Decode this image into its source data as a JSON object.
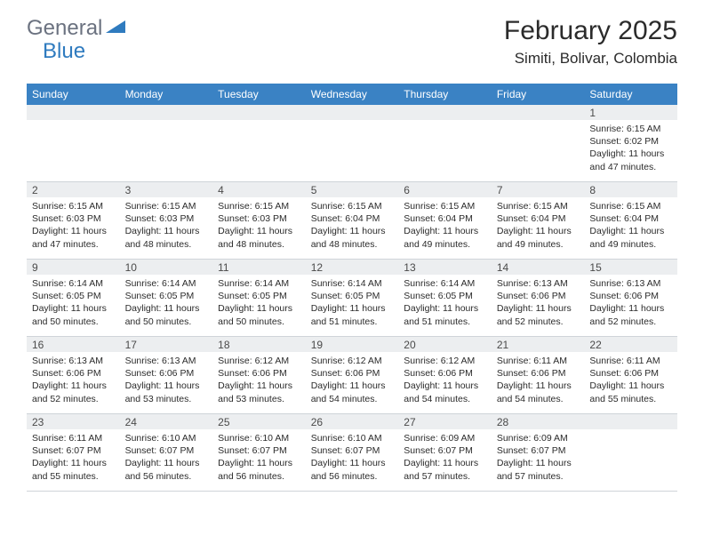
{
  "logo": {
    "general": "General",
    "blue": "Blue"
  },
  "title": "February 2025",
  "location": "Simiti, Bolivar, Colombia",
  "colors": {
    "header_bar": "#3a82c4",
    "daynum_bg": "#eceef0",
    "text": "#2b2b2b",
    "logo_gray": "#6b7280",
    "logo_blue": "#2f7bbf",
    "border": "#cfd4d9"
  },
  "weekdays": [
    "Sunday",
    "Monday",
    "Tuesday",
    "Wednesday",
    "Thursday",
    "Friday",
    "Saturday"
  ],
  "weeks": [
    [
      {
        "empty": true
      },
      {
        "empty": true
      },
      {
        "empty": true
      },
      {
        "empty": true
      },
      {
        "empty": true
      },
      {
        "empty": true
      },
      {
        "day": "1",
        "sunrise": "Sunrise: 6:15 AM",
        "sunset": "Sunset: 6:02 PM",
        "daylight": "Daylight: 11 hours and 47 minutes."
      }
    ],
    [
      {
        "day": "2",
        "sunrise": "Sunrise: 6:15 AM",
        "sunset": "Sunset: 6:03 PM",
        "daylight": "Daylight: 11 hours and 47 minutes."
      },
      {
        "day": "3",
        "sunrise": "Sunrise: 6:15 AM",
        "sunset": "Sunset: 6:03 PM",
        "daylight": "Daylight: 11 hours and 48 minutes."
      },
      {
        "day": "4",
        "sunrise": "Sunrise: 6:15 AM",
        "sunset": "Sunset: 6:03 PM",
        "daylight": "Daylight: 11 hours and 48 minutes."
      },
      {
        "day": "5",
        "sunrise": "Sunrise: 6:15 AM",
        "sunset": "Sunset: 6:04 PM",
        "daylight": "Daylight: 11 hours and 48 minutes."
      },
      {
        "day": "6",
        "sunrise": "Sunrise: 6:15 AM",
        "sunset": "Sunset: 6:04 PM",
        "daylight": "Daylight: 11 hours and 49 minutes."
      },
      {
        "day": "7",
        "sunrise": "Sunrise: 6:15 AM",
        "sunset": "Sunset: 6:04 PM",
        "daylight": "Daylight: 11 hours and 49 minutes."
      },
      {
        "day": "8",
        "sunrise": "Sunrise: 6:15 AM",
        "sunset": "Sunset: 6:04 PM",
        "daylight": "Daylight: 11 hours and 49 minutes."
      }
    ],
    [
      {
        "day": "9",
        "sunrise": "Sunrise: 6:14 AM",
        "sunset": "Sunset: 6:05 PM",
        "daylight": "Daylight: 11 hours and 50 minutes."
      },
      {
        "day": "10",
        "sunrise": "Sunrise: 6:14 AM",
        "sunset": "Sunset: 6:05 PM",
        "daylight": "Daylight: 11 hours and 50 minutes."
      },
      {
        "day": "11",
        "sunrise": "Sunrise: 6:14 AM",
        "sunset": "Sunset: 6:05 PM",
        "daylight": "Daylight: 11 hours and 50 minutes."
      },
      {
        "day": "12",
        "sunrise": "Sunrise: 6:14 AM",
        "sunset": "Sunset: 6:05 PM",
        "daylight": "Daylight: 11 hours and 51 minutes."
      },
      {
        "day": "13",
        "sunrise": "Sunrise: 6:14 AM",
        "sunset": "Sunset: 6:05 PM",
        "daylight": "Daylight: 11 hours and 51 minutes."
      },
      {
        "day": "14",
        "sunrise": "Sunrise: 6:13 AM",
        "sunset": "Sunset: 6:06 PM",
        "daylight": "Daylight: 11 hours and 52 minutes."
      },
      {
        "day": "15",
        "sunrise": "Sunrise: 6:13 AM",
        "sunset": "Sunset: 6:06 PM",
        "daylight": "Daylight: 11 hours and 52 minutes."
      }
    ],
    [
      {
        "day": "16",
        "sunrise": "Sunrise: 6:13 AM",
        "sunset": "Sunset: 6:06 PM",
        "daylight": "Daylight: 11 hours and 52 minutes."
      },
      {
        "day": "17",
        "sunrise": "Sunrise: 6:13 AM",
        "sunset": "Sunset: 6:06 PM",
        "daylight": "Daylight: 11 hours and 53 minutes."
      },
      {
        "day": "18",
        "sunrise": "Sunrise: 6:12 AM",
        "sunset": "Sunset: 6:06 PM",
        "daylight": "Daylight: 11 hours and 53 minutes."
      },
      {
        "day": "19",
        "sunrise": "Sunrise: 6:12 AM",
        "sunset": "Sunset: 6:06 PM",
        "daylight": "Daylight: 11 hours and 54 minutes."
      },
      {
        "day": "20",
        "sunrise": "Sunrise: 6:12 AM",
        "sunset": "Sunset: 6:06 PM",
        "daylight": "Daylight: 11 hours and 54 minutes."
      },
      {
        "day": "21",
        "sunrise": "Sunrise: 6:11 AM",
        "sunset": "Sunset: 6:06 PM",
        "daylight": "Daylight: 11 hours and 54 minutes."
      },
      {
        "day": "22",
        "sunrise": "Sunrise: 6:11 AM",
        "sunset": "Sunset: 6:06 PM",
        "daylight": "Daylight: 11 hours and 55 minutes."
      }
    ],
    [
      {
        "day": "23",
        "sunrise": "Sunrise: 6:11 AM",
        "sunset": "Sunset: 6:07 PM",
        "daylight": "Daylight: 11 hours and 55 minutes."
      },
      {
        "day": "24",
        "sunrise": "Sunrise: 6:10 AM",
        "sunset": "Sunset: 6:07 PM",
        "daylight": "Daylight: 11 hours and 56 minutes."
      },
      {
        "day": "25",
        "sunrise": "Sunrise: 6:10 AM",
        "sunset": "Sunset: 6:07 PM",
        "daylight": "Daylight: 11 hours and 56 minutes."
      },
      {
        "day": "26",
        "sunrise": "Sunrise: 6:10 AM",
        "sunset": "Sunset: 6:07 PM",
        "daylight": "Daylight: 11 hours and 56 minutes."
      },
      {
        "day": "27",
        "sunrise": "Sunrise: 6:09 AM",
        "sunset": "Sunset: 6:07 PM",
        "daylight": "Daylight: 11 hours and 57 minutes."
      },
      {
        "day": "28",
        "sunrise": "Sunrise: 6:09 AM",
        "sunset": "Sunset: 6:07 PM",
        "daylight": "Daylight: 11 hours and 57 minutes."
      },
      {
        "empty": true
      }
    ]
  ]
}
